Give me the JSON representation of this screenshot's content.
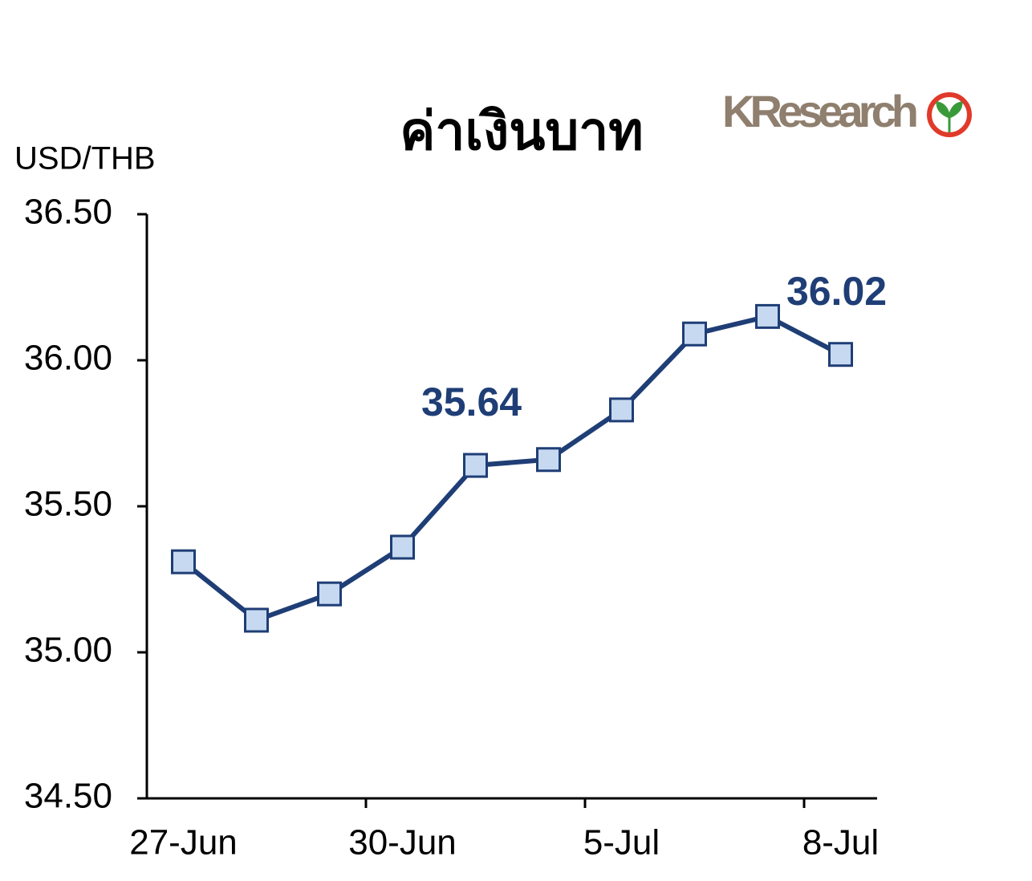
{
  "chart_data": {
    "type": "line",
    "title": "ค่าเงินบาท",
    "y_axis_label": "USD/THB",
    "logo_text": "KResearch",
    "categories": [
      "27-Jun",
      null,
      null,
      "30-Jun",
      null,
      null,
      "5-Jul",
      null,
      null,
      "8-Jul"
    ],
    "series": [
      {
        "name": "USD/THB",
        "color": "#1f3e76",
        "marker_color": "#c6d9f1",
        "values": [
          35.31,
          35.11,
          35.2,
          35.36,
          35.64,
          35.66,
          35.83,
          36.09,
          36.15,
          36.02
        ],
        "value_labels": [
          null,
          null,
          null,
          null,
          "35.64",
          null,
          null,
          null,
          null,
          "36.02"
        ]
      }
    ],
    "ylim": [
      34.5,
      36.5
    ],
    "yticks": [
      {
        "value": 34.5,
        "label": "34.50"
      },
      {
        "value": 35,
        "label": "35.00"
      },
      {
        "value": 35.5,
        "label": "35.50"
      },
      {
        "value": 36,
        "label": "36.00"
      },
      {
        "value": 36.5,
        "label": "36.50"
      }
    ],
    "grid": false
  }
}
